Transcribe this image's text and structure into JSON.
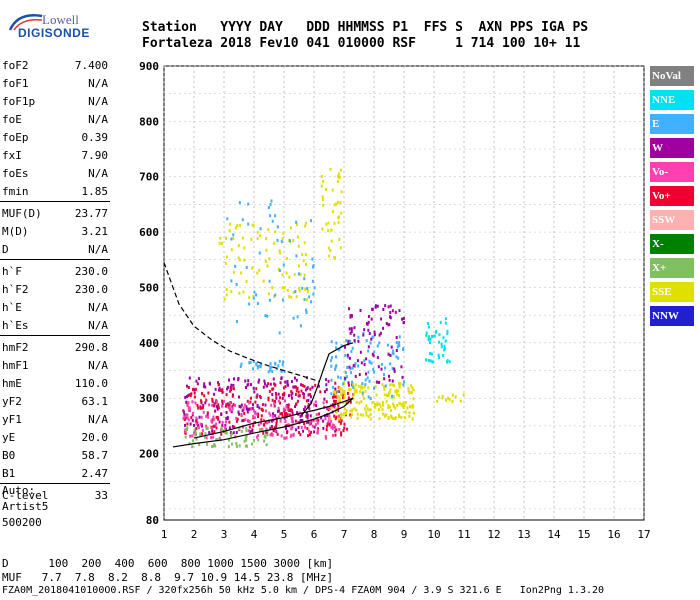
{
  "logo": {
    "line1": "Lowell",
    "line2": "DIGISONDE"
  },
  "header": {
    "labels": "Station   YYYY DAY   DDD HHMMSS P1  FFS S  AXN PPS IGA PS",
    "values": "Fortaleza 2018 Fev10 041 010000 RSF     1 714 100 10+ 11"
  },
  "params": [
    {
      "k": "foF2",
      "v": "7.400"
    },
    {
      "k": "foF1",
      "v": "N/A"
    },
    {
      "k": "foF1p",
      "v": "N/A"
    },
    {
      "k": "foE",
      "v": "N/A"
    },
    {
      "k": "foEp",
      "v": "0.39"
    },
    {
      "k": "fxI",
      "v": "7.90"
    },
    {
      "k": "foEs",
      "v": "N/A"
    },
    {
      "k": "fmin",
      "v": "1.85"
    },
    {
      "k": "MUF(D)",
      "v": "23.77"
    },
    {
      "k": "M(D)",
      "v": "3.21"
    },
    {
      "k": "D",
      "v": "N/A"
    },
    {
      "k": "h`F",
      "v": "230.0"
    },
    {
      "k": "h`F2",
      "v": "230.0"
    },
    {
      "k": "h`E",
      "v": "N/A"
    },
    {
      "k": "h`Es",
      "v": "N/A"
    },
    {
      "k": "hmF2",
      "v": "290.8"
    },
    {
      "k": "hmF1",
      "v": "N/A"
    },
    {
      "k": "hmE",
      "v": "110.0"
    },
    {
      "k": "yF2",
      "v": "63.1"
    },
    {
      "k": "yF1",
      "v": "N/A"
    },
    {
      "k": "yE",
      "v": "20.0"
    },
    {
      "k": "B0",
      "v": "58.7"
    },
    {
      "k": "B1",
      "v": "2.47"
    },
    {
      "k": "C-level",
      "v": "33"
    }
  ],
  "auto": {
    "l1": "Auto:",
    "l2": "Artist5",
    "l3": "500200"
  },
  "legend": [
    {
      "label": "NoVal",
      "color": "#808080"
    },
    {
      "label": "NNE",
      "color": "#00e0f0"
    },
    {
      "label": "E",
      "color": "#40b0ff"
    },
    {
      "label": "W",
      "color": "#a000a0"
    },
    {
      "label": "Vo-",
      "color": "#ff40b0"
    },
    {
      "label": "Vo+",
      "color": "#f00030"
    },
    {
      "label": "SSW",
      "color": "#ffb0b0"
    },
    {
      "label": "X-",
      "color": "#008000"
    },
    {
      "label": "X+",
      "color": "#80c060"
    },
    {
      "label": "SSE",
      "color": "#e0e000"
    },
    {
      "label": "NNW",
      "color": "#2020d0"
    }
  ],
  "footer": {
    "d_row": "D      100  200  400  600  800 1000 1500 3000 [km]",
    "muf_row": "MUF   7.7  7.8  8.2  8.8  9.7 10.9 14.5 23.8 [MHz]",
    "file_row": "FZA0M_20180410100O0.RSF / 320fx256h 50 kHz 5.0 km / DPS-4 FZA0M 904 / 3.9 S 321.6 E   Ion2Png 1.3.20"
  },
  "chart_data": {
    "type": "scatter",
    "xlim": [
      1,
      17
    ],
    "ylim": [
      80,
      900
    ],
    "xticks": [
      1,
      2,
      3,
      4,
      5,
      6,
      7,
      8,
      9,
      10,
      11,
      12,
      13,
      14,
      15,
      16,
      17
    ],
    "yticks": [
      80,
      200,
      300,
      400,
      500,
      600,
      700,
      800,
      900
    ],
    "grid": true,
    "legend_placement": "right",
    "clusters": [
      {
        "series": "W",
        "x": [
          1.6,
          6.8
        ],
        "y": [
          240,
          340
        ],
        "n": 260
      },
      {
        "series": "Vo+",
        "x": [
          1.6,
          7.3
        ],
        "y": [
          235,
          330
        ],
        "n": 220
      },
      {
        "series": "Vo-",
        "x": [
          1.6,
          7.0
        ],
        "y": [
          230,
          300
        ],
        "n": 160
      },
      {
        "series": "SSE",
        "x": [
          6.5,
          9.3
        ],
        "y": [
          265,
          330
        ],
        "n": 180
      },
      {
        "series": "X+",
        "x": [
          1.6,
          4.5
        ],
        "y": [
          215,
          250
        ],
        "n": 60
      },
      {
        "series": "E",
        "x": [
          6.5,
          9.0
        ],
        "y": [
          300,
          420
        ],
        "n": 90
      },
      {
        "series": "NNE",
        "x": [
          9.7,
          10.5
        ],
        "y": [
          360,
          450
        ],
        "n": 40
      },
      {
        "series": "W",
        "x": [
          7.0,
          9.0
        ],
        "y": [
          330,
          470
        ],
        "n": 90
      },
      {
        "series": "SSE",
        "x": [
          2.8,
          5.8
        ],
        "y": [
          480,
          620
        ],
        "n": 90
      },
      {
        "series": "E",
        "x": [
          3.0,
          6.0
        ],
        "y": [
          420,
          660
        ],
        "n": 60
      },
      {
        "series": "SSE",
        "x": [
          6.2,
          6.9
        ],
        "y": [
          540,
          720
        ],
        "n": 40
      },
      {
        "series": "SSE",
        "x": [
          10.0,
          11.0
        ],
        "y": [
          295,
          310
        ],
        "n": 12
      },
      {
        "series": "E",
        "x": [
          3.5,
          5.0
        ],
        "y": [
          350,
          370
        ],
        "n": 30
      }
    ],
    "curves": [
      {
        "style": "dashed",
        "x": [
          1.0,
          1.5,
          2.0,
          2.6,
          3.2,
          3.8,
          4.4,
          5.0,
          5.6,
          6.2
        ],
        "y": [
          545,
          470,
          430,
          405,
          385,
          372,
          360,
          350,
          340,
          330
        ]
      },
      {
        "style": "solid",
        "x": [
          1.3,
          2.0,
          3.0,
          4.0,
          5.0,
          6.0,
          6.5,
          7.0,
          7.3
        ],
        "y": [
          212,
          218,
          225,
          237,
          248,
          262,
          272,
          285,
          300
        ]
      },
      {
        "style": "solid",
        "x": [
          2.0,
          3.0,
          4.0,
          5.0,
          5.5,
          6.0,
          6.5,
          7.0,
          7.3
        ],
        "y": [
          228,
          240,
          255,
          265,
          272,
          278,
          285,
          294,
          300
        ]
      },
      {
        "style": "solid",
        "x": [
          5.6,
          5.9,
          6.1,
          6.3,
          6.5,
          7.0,
          7.3
        ],
        "y": [
          270,
          290,
          318,
          350,
          380,
          395,
          400
        ]
      }
    ]
  }
}
